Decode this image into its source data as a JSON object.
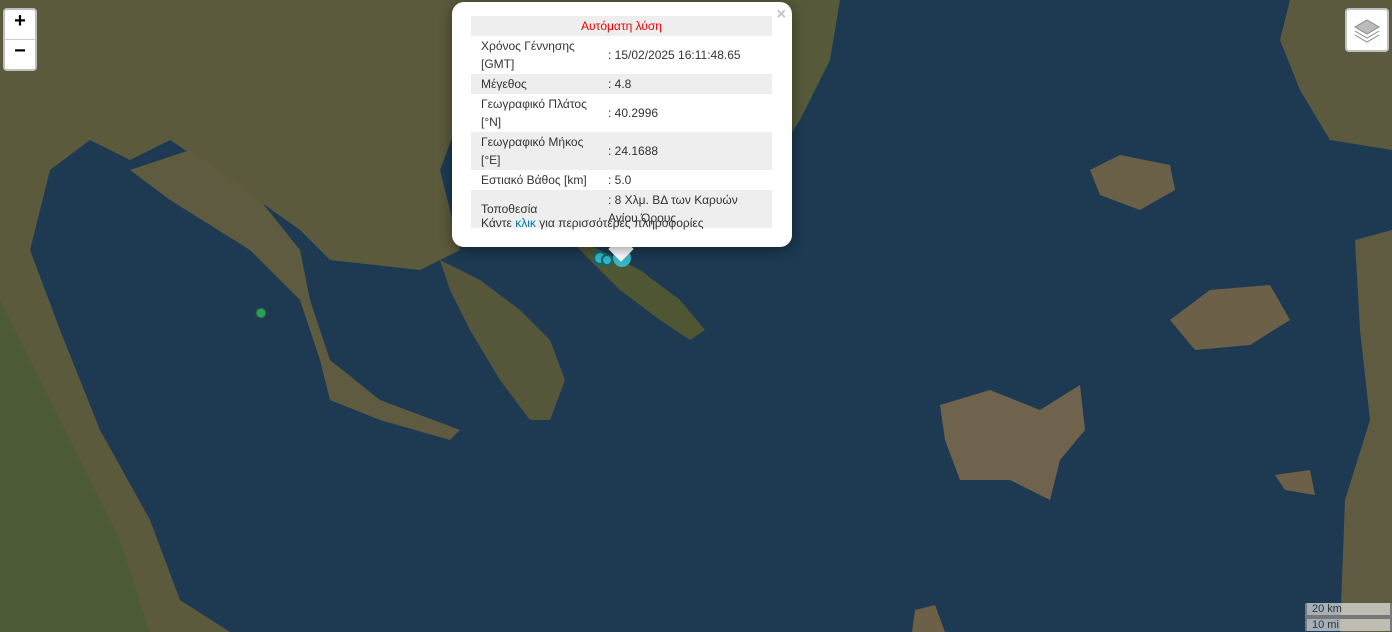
{
  "zoom": {
    "in": "+",
    "out": "−"
  },
  "popup": {
    "close": "×",
    "title": "Αυτόματη λύση",
    "rows": [
      [
        "Χρόνος Γέννησης [GMT]",
        ": 15/02/2025 16:11:48.65"
      ],
      [
        "Μέγεθος",
        ": 4.8"
      ],
      [
        "Γεωγραφικό Πλάτος [°N]",
        ": 40.2996"
      ],
      [
        "Γεωγραφικό Μήκος [°E]",
        ": 24.1688"
      ],
      [
        "Εστιακό Βάθος [km]",
        ": 5.0"
      ],
      [
        "Τοποθεσία",
        ": 8 Χλμ. ΒΔ των Καρυών Αγίου Όρους"
      ]
    ],
    "footer": {
      "before": "Κάντε ",
      "link": "κλικ",
      "after": " για περισσότερες πληροφορίες"
    }
  },
  "scale": {
    "metric": "20 km",
    "imperial": "10 mi"
  }
}
